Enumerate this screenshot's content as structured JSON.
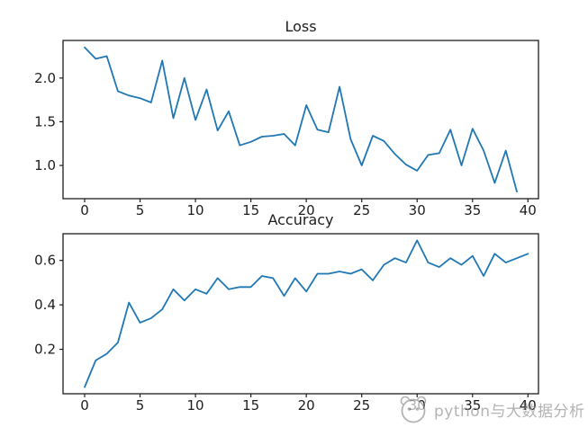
{
  "page": {
    "background": "#ffffff"
  },
  "text_color": "#1d1d1d",
  "line_color": "#1f77b4",
  "watermark": {
    "logo_icon": "panda-logo-icon",
    "text": "python与大数据分析",
    "color": "#8c8c8c"
  },
  "chart_data": [
    {
      "type": "line",
      "title": "Loss",
      "xlabel": "",
      "ylabel": "",
      "grid": false,
      "legend": null,
      "xlim": [
        -1.95,
        40.95
      ],
      "ylim": [
        0.62,
        2.43
      ],
      "xticks": [
        0,
        5,
        10,
        15,
        20,
        25,
        30,
        35,
        40
      ],
      "xtick_labels": [
        "0",
        "5",
        "10",
        "15",
        "20",
        "25",
        "30",
        "35",
        "40"
      ],
      "yticks": [
        1.0,
        1.5,
        2.0
      ],
      "ytick_labels": [
        "1.0",
        "1.5",
        "2.0"
      ],
      "series": [
        {
          "name": "loss",
          "color": "#1f77b4",
          "x_start": 0,
          "x_step": 1,
          "values": [
            2.35,
            2.22,
            2.25,
            1.85,
            1.8,
            1.77,
            1.72,
            2.2,
            1.54,
            2.0,
            1.52,
            1.87,
            1.4,
            1.62,
            1.23,
            1.27,
            1.33,
            1.34,
            1.36,
            1.23,
            1.69,
            1.41,
            1.38,
            1.9,
            1.3,
            1.0,
            1.34,
            1.28,
            1.13,
            1.01,
            0.94,
            1.12,
            1.14,
            1.41,
            1.0,
            1.42,
            1.17,
            0.8,
            1.17,
            0.7
          ]
        }
      ]
    },
    {
      "type": "line",
      "title": "Accuracy",
      "xlabel": "",
      "ylabel": "",
      "grid": false,
      "legend": null,
      "xlim": [
        -1.95,
        40.95
      ],
      "ylim": [
        0.0,
        0.72
      ],
      "xticks": [
        0,
        5,
        10,
        15,
        20,
        25,
        30,
        35,
        40
      ],
      "xtick_labels": [
        "0",
        "5",
        "10",
        "15",
        "20",
        "25",
        "30",
        "35",
        "40"
      ],
      "yticks": [
        0.2,
        0.4,
        0.6
      ],
      "ytick_labels": [
        "0.2",
        "0.4",
        "0.6"
      ],
      "series": [
        {
          "name": "accuracy",
          "color": "#1f77b4",
          "x_start": 0,
          "x_step": 1,
          "values": [
            0.03,
            0.15,
            0.18,
            0.23,
            0.41,
            0.32,
            0.34,
            0.38,
            0.47,
            0.42,
            0.47,
            0.45,
            0.52,
            0.47,
            0.48,
            0.48,
            0.53,
            0.52,
            0.44,
            0.52,
            0.46,
            0.54,
            0.54,
            0.55,
            0.54,
            0.56,
            0.51,
            0.58,
            0.61,
            0.59,
            0.69,
            0.59,
            0.57,
            0.61,
            0.58,
            0.62,
            0.53,
            0.63,
            0.59,
            0.61,
            0.63
          ]
        }
      ]
    }
  ]
}
